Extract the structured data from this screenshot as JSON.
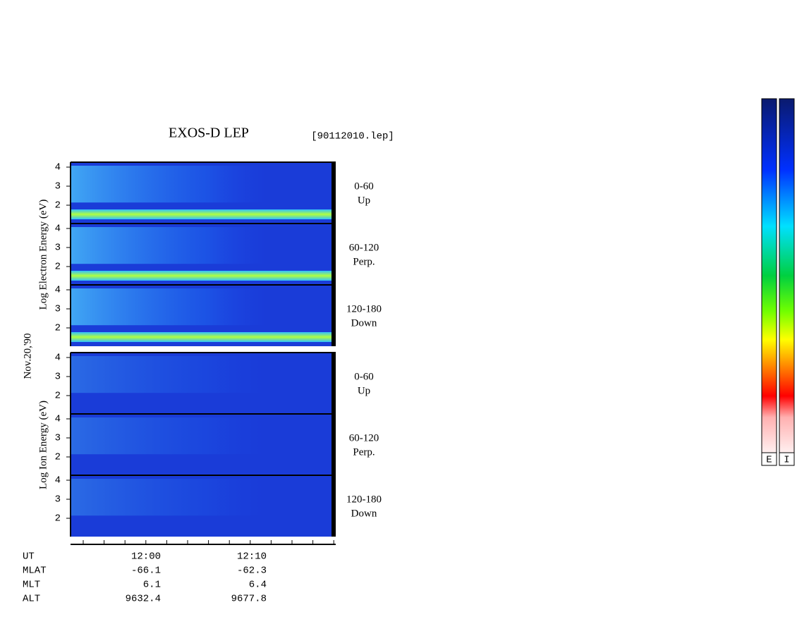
{
  "header": {
    "title": "EXOS-D LEP",
    "file": "[90112010.lep]"
  },
  "date": "Nov.20,'90",
  "groups": [
    {
      "axis_label": "Log Electron Energy (eV)",
      "panels": [
        {
          "range": "0-60",
          "direction": "Up",
          "ticks": [
            "4",
            "3",
            "2"
          ]
        },
        {
          "range": "60-120",
          "direction": "Perp.",
          "ticks": [
            "4",
            "3",
            "2"
          ]
        },
        {
          "range": "120-180",
          "direction": "Down",
          "ticks": [
            "4",
            "3",
            "2"
          ]
        }
      ]
    },
    {
      "axis_label": "Log Ion Energy (eV)",
      "panels": [
        {
          "range": "0-60",
          "direction": "Up",
          "ticks": [
            "4",
            "3",
            "2"
          ]
        },
        {
          "range": "60-120",
          "direction": "Perp.",
          "ticks": [
            "4",
            "3",
            "2"
          ]
        },
        {
          "range": "120-180",
          "direction": "Down",
          "ticks": [
            "4",
            "3",
            "2"
          ]
        }
      ]
    }
  ],
  "orbit_table": [
    {
      "label": "UT",
      "values": [
        "12:00",
        "12:10"
      ]
    },
    {
      "label": "MLAT",
      "values": [
        "-66.1",
        "-62.3"
      ]
    },
    {
      "label": "MLT",
      "values": [
        "6.1",
        "6.4"
      ]
    },
    {
      "label": "ALT",
      "values": [
        "9632.4",
        "9677.8"
      ]
    }
  ],
  "color_bars": [
    "E",
    "I"
  ]
}
